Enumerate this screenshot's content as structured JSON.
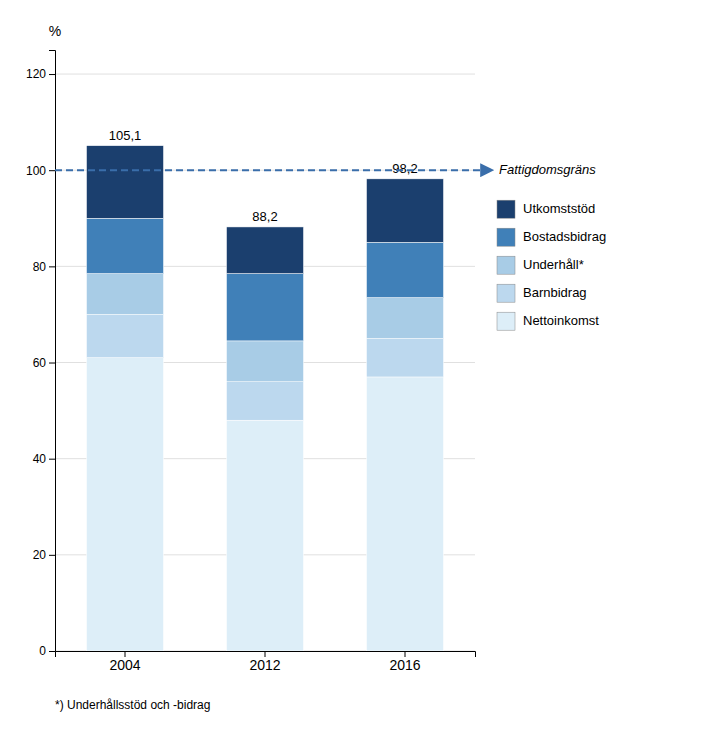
{
  "chart_data": {
    "type": "bar",
    "stacked": true,
    "categories": [
      "2004",
      "2012",
      "2016"
    ],
    "series": [
      {
        "name": "Nettoinkomst",
        "color": "#ddeef8",
        "values": [
          61.0,
          48.0,
          57.0
        ]
      },
      {
        "name": "Barnbidrag",
        "color": "#bcd8ee",
        "values": [
          9.0,
          8.0,
          8.0
        ]
      },
      {
        "name": "Underhåll*",
        "color": "#a8cce6",
        "values": [
          8.5,
          8.5,
          8.5
        ]
      },
      {
        "name": "Bostadsbidrag",
        "color": "#4080b8",
        "values": [
          11.5,
          14.0,
          11.5
        ]
      },
      {
        "name": "Utkomststöd",
        "color": "#1b3f6e",
        "values": [
          15.1,
          9.7,
          13.2
        ]
      }
    ],
    "totals": [
      105.1,
      88.2,
      98.2
    ],
    "total_labels": [
      "105,1",
      "88,2",
      "98,2"
    ],
    "poverty_line": {
      "value": 100,
      "label": "Fattigdomsgräns",
      "color": "#3a6eaa"
    },
    "y_label": "%",
    "footnote": "*) Underhållsstöd och -bidrag",
    "ylim": [
      0,
      125
    ],
    "yticks": [
      0,
      20,
      40,
      60,
      80,
      100,
      120
    ],
    "grid": true,
    "legend": "right"
  }
}
